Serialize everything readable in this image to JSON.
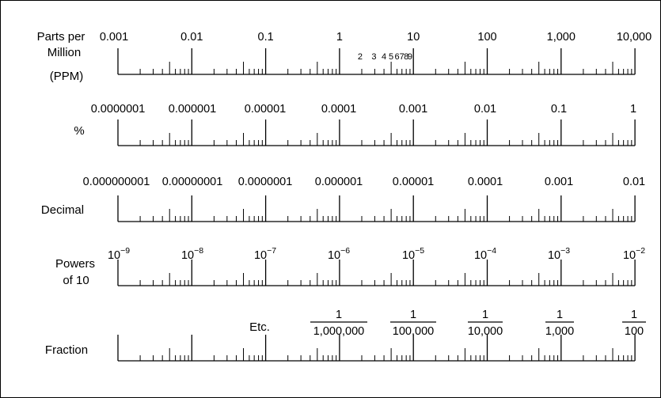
{
  "scales": [
    {
      "id": "ppm",
      "label_lines": [
        "Parts per",
        "Million",
        "(PPM)"
      ],
      "ticks": [
        "0.001",
        "0.01",
        "0.1",
        "1",
        "10",
        "100",
        "1,000",
        "10,000"
      ],
      "sub_digits": [
        "2",
        "3",
        "4",
        "5",
        "6",
        "7",
        "8",
        "9"
      ]
    },
    {
      "id": "percent",
      "label_lines": [
        "%"
      ],
      "ticks": [
        "0.0000001",
        "0.000001",
        "0.00001",
        "0.0001",
        "0.001",
        "0.01",
        "0.1",
        "1"
      ]
    },
    {
      "id": "decimal",
      "label_lines": [
        "Decimal"
      ],
      "ticks": [
        "0.000000001",
        "0.00000001",
        "0.0000001",
        "0.000001",
        "0.00001",
        "0.0001",
        "0.001",
        "0.01"
      ]
    },
    {
      "id": "powers",
      "label_lines": [
        "Powers",
        "of 10"
      ],
      "base": "10",
      "exponents": [
        "−9",
        "−8",
        "−7",
        "−6",
        "−5",
        "−4",
        "−3",
        "−2"
      ]
    },
    {
      "id": "fraction",
      "label_lines": [
        "Fraction"
      ],
      "etc_label": "Etc.",
      "numerator": "1",
      "denominators": [
        "1,000,000",
        "100,000",
        "10,000",
        "1,000",
        "100"
      ]
    }
  ]
}
